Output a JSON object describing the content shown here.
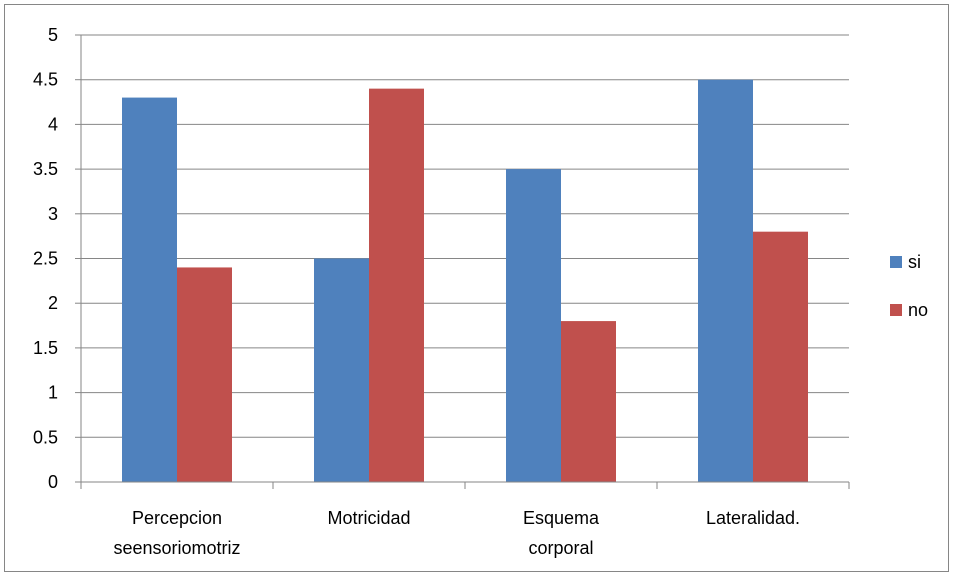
{
  "chart_data": {
    "type": "bar",
    "title": "",
    "xlabel": "",
    "ylabel": "",
    "ylim": [
      0,
      5
    ],
    "yticks": [
      "0",
      "0.5",
      "1",
      "1.5",
      "2",
      "2.5",
      "3",
      "3.5",
      "4",
      "4.5",
      "5"
    ],
    "categories": [
      [
        "Percepcion",
        "seensoriomotriz"
      ],
      [
        "Motricidad"
      ],
      [
        "Esquema",
        "corporal"
      ],
      [
        "Lateralidad."
      ]
    ],
    "series": [
      {
        "name": "si",
        "color": "#4F81BD",
        "values": [
          4.3,
          2.5,
          3.5,
          4.5
        ]
      },
      {
        "name": "no",
        "color": "#C0504D",
        "values": [
          2.4,
          4.4,
          1.8,
          2.8
        ]
      }
    ],
    "grid": true,
    "legend": "right"
  }
}
